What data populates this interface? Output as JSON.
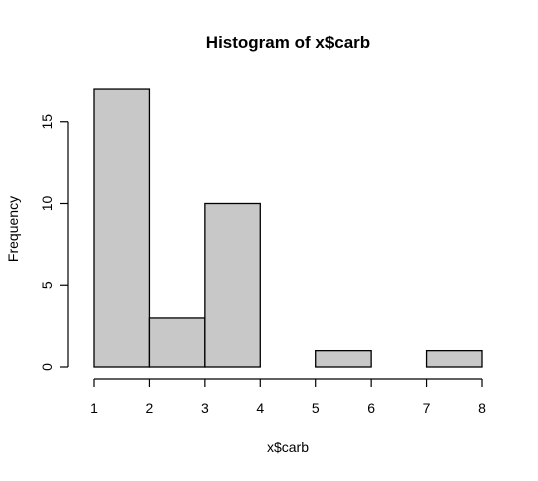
{
  "chart_data": {
    "type": "bar",
    "subtype": "histogram",
    "title": "Histogram of x$carb",
    "xlabel": "x$carb",
    "ylabel": "Frequency",
    "bins": [
      {
        "start": 1,
        "end": 2,
        "count": 17
      },
      {
        "start": 2,
        "end": 3,
        "count": 3
      },
      {
        "start": 3,
        "end": 4,
        "count": 10
      },
      {
        "start": 4,
        "end": 5,
        "count": 0
      },
      {
        "start": 5,
        "end": 6,
        "count": 1
      },
      {
        "start": 6,
        "end": 7,
        "count": 0
      },
      {
        "start": 7,
        "end": 8,
        "count": 1
      }
    ],
    "xlim": [
      1,
      8
    ],
    "ylim": [
      0,
      17
    ],
    "x_ticks": [
      "1",
      "2",
      "3",
      "4",
      "5",
      "6",
      "7",
      "8"
    ],
    "y_ticks": [
      "0",
      "5",
      "10",
      "15"
    ],
    "grid": false,
    "legend": "none",
    "bar_fill": "#c8c8c8",
    "bar_stroke": "#000000"
  }
}
